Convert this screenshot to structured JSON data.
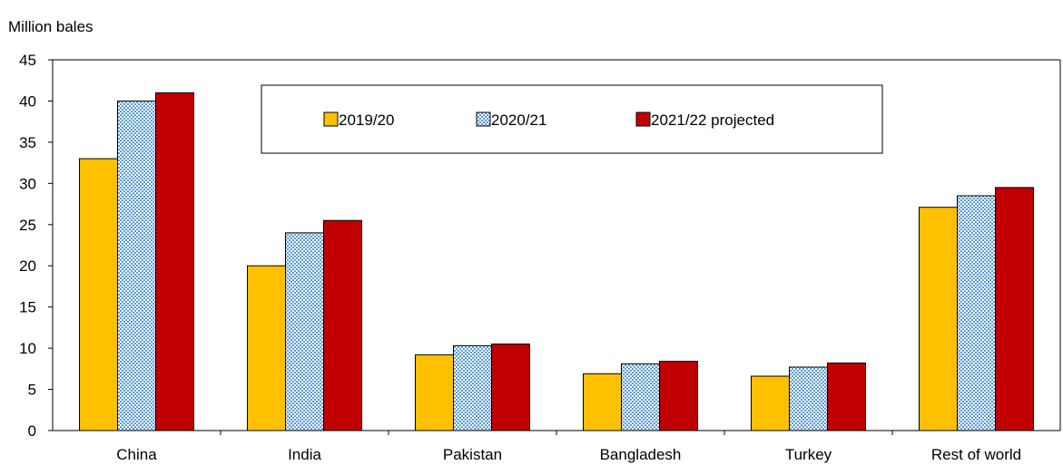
{
  "chart_data": {
    "type": "bar",
    "ylabel": "Million bales",
    "xlabel": "",
    "title": "",
    "ylim": [
      0,
      45
    ],
    "yticks": [
      0,
      5,
      10,
      15,
      20,
      25,
      30,
      35,
      40,
      45
    ],
    "grid": false,
    "legend_position": "top-center",
    "categories": [
      "China",
      "India",
      "Pakistan",
      "Bangladesh",
      "Turkey",
      "Rest of world"
    ],
    "series": [
      {
        "name": "2019/20",
        "color": "#FFC000",
        "pattern": "solid",
        "values": [
          33,
          20,
          9.2,
          6.9,
          6.6,
          27.1
        ]
      },
      {
        "name": "2020/21",
        "color": "#5B9BD5",
        "pattern": "dotted",
        "values": [
          40,
          24,
          10.3,
          8.1,
          7.7,
          28.5
        ]
      },
      {
        "name": "2021/22 projected",
        "color": "#C00000",
        "pattern": "solid",
        "values": [
          41,
          25.5,
          10.5,
          8.4,
          8.2,
          29.5
        ]
      }
    ]
  }
}
